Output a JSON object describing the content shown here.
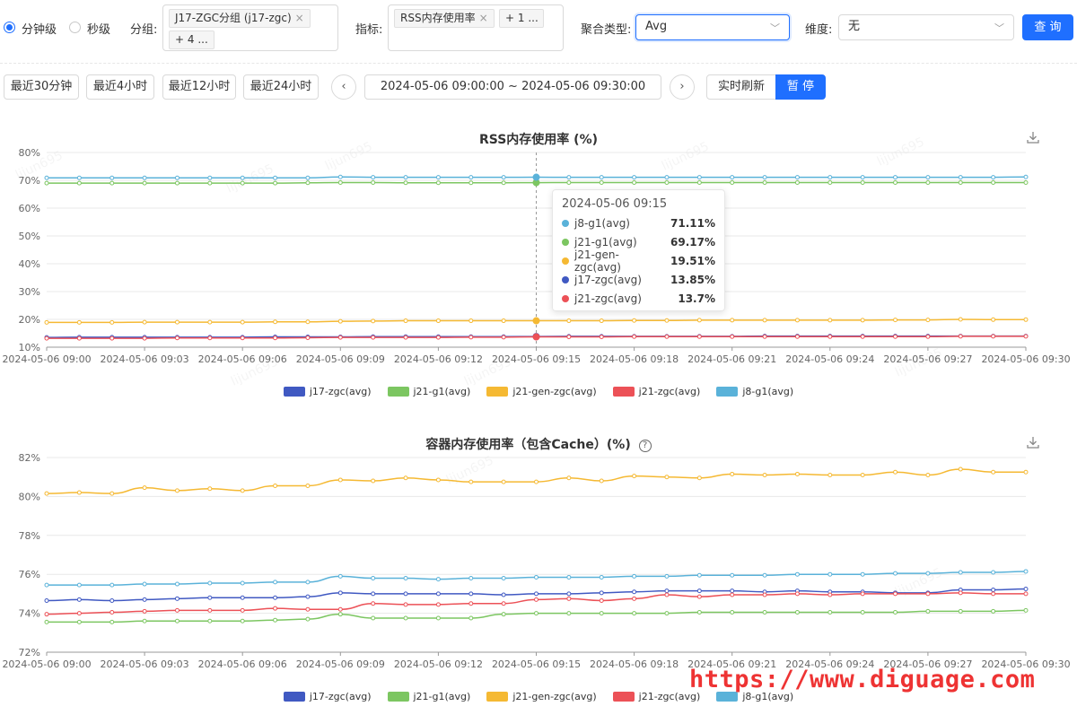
{
  "filters": {
    "radio_minute": "分钟级",
    "radio_second": "秒级",
    "group_label": "分组:",
    "group_tag": "J17-ZGC分组 (j17-zgc)",
    "group_more": "+ 4 ...",
    "metric_label": "指标:",
    "metric_tag": "RSS内存使用率",
    "metric_more": "+ 1 ...",
    "agg_label": "聚合类型:",
    "agg_value": "Avg",
    "dim_label": "维度:",
    "dim_value": "无",
    "query_button": "查 询"
  },
  "timebar": {
    "quick": [
      "最近30分钟",
      "最近4小时",
      "最近12小时",
      "最近24小时"
    ],
    "range": "2024-05-06 09:00:00 ~ 2024-05-06 09:30:00",
    "realtime": "实时刷新",
    "pause": "暂 停"
  },
  "watermark": "lijun695",
  "site_watermark": "https://www.diguage.com",
  "tooltip": {
    "time": "2024-05-06 09:15",
    "rows": [
      {
        "name": "j8-g1(avg)",
        "value": "71.11%",
        "color": "#5ab2d9"
      },
      {
        "name": "j21-g1(avg)",
        "value": "69.17%",
        "color": "#7cc661"
      },
      {
        "name": "j21-gen-zgc(avg)",
        "value": "19.51%",
        "color": "#f5b933"
      },
      {
        "name": "j17-zgc(avg)",
        "value": "13.85%",
        "color": "#4059c2"
      },
      {
        "name": "j21-zgc(avg)",
        "value": "13.7%",
        "color": "#ec5157"
      }
    ]
  },
  "chart_data": [
    {
      "type": "line",
      "title": "RSS内存使用率 (%)",
      "y_tick_labels": [
        "10%",
        "20%",
        "30%",
        "40%",
        "50%",
        "60%",
        "70%",
        "80%"
      ],
      "ylim": [
        10,
        80
      ],
      "x_tick_labels": [
        "2024-05-06 09:00",
        "2024-05-06 09:03",
        "2024-05-06 09:06",
        "2024-05-06 09:09",
        "2024-05-06 09:12",
        "2024-05-06 09:15",
        "2024-05-06 09:18",
        "2024-05-06 09:21",
        "2024-05-06 09:24",
        "2024-05-06 09:27",
        "2024-05-06 09:30"
      ],
      "x_minutes": [
        0,
        1,
        2,
        3,
        4,
        5,
        6,
        7,
        8,
        9,
        10,
        11,
        12,
        13,
        14,
        15,
        16,
        17,
        18,
        19,
        20,
        21,
        22,
        23,
        24,
        25,
        26,
        27,
        28,
        29,
        30
      ],
      "legend_position": "bottom-center",
      "grid": true,
      "series": [
        {
          "name": "j17-zgc(avg)",
          "color": "#4059c2",
          "values": [
            13.5,
            13.6,
            13.6,
            13.6,
            13.6,
            13.6,
            13.6,
            13.7,
            13.7,
            13.7,
            13.8,
            13.8,
            13.8,
            13.8,
            13.8,
            13.85,
            13.9,
            13.9,
            13.9,
            13.9,
            13.9,
            13.9,
            14.0,
            14.0,
            14.0,
            14.0,
            14.0,
            14.0,
            14.0,
            14.0,
            14.0
          ]
        },
        {
          "name": "j21-g1(avg)",
          "color": "#7cc661",
          "values": [
            69.0,
            69.0,
            69.0,
            69.0,
            69.0,
            69.0,
            69.0,
            69.0,
            69.1,
            69.2,
            69.2,
            69.1,
            69.1,
            69.1,
            69.1,
            69.17,
            69.2,
            69.2,
            69.2,
            69.2,
            69.2,
            69.2,
            69.2,
            69.2,
            69.2,
            69.2,
            69.2,
            69.2,
            69.2,
            69.2,
            69.2
          ]
        },
        {
          "name": "j21-gen-zgc(avg)",
          "color": "#f5b933",
          "values": [
            18.9,
            18.9,
            18.9,
            19.0,
            19.0,
            19.0,
            19.0,
            19.1,
            19.1,
            19.3,
            19.4,
            19.5,
            19.5,
            19.5,
            19.5,
            19.51,
            19.5,
            19.5,
            19.6,
            19.6,
            19.7,
            19.7,
            19.7,
            19.7,
            19.7,
            19.7,
            19.8,
            19.8,
            20.0,
            19.9,
            19.9
          ]
        },
        {
          "name": "j21-zgc(avg)",
          "color": "#ec5157",
          "values": [
            13.2,
            13.2,
            13.2,
            13.2,
            13.3,
            13.3,
            13.3,
            13.3,
            13.4,
            13.5,
            13.5,
            13.5,
            13.5,
            13.6,
            13.6,
            13.7,
            13.7,
            13.7,
            13.8,
            13.8,
            13.8,
            13.8,
            13.8,
            13.8,
            13.8,
            13.8,
            13.8,
            13.8,
            13.9,
            13.9,
            13.9
          ]
        },
        {
          "name": "j8-g1(avg)",
          "color": "#5ab2d9",
          "values": [
            70.9,
            70.9,
            70.9,
            70.9,
            70.9,
            70.9,
            70.9,
            70.9,
            70.9,
            71.2,
            71.1,
            71.1,
            71.1,
            71.1,
            71.1,
            71.11,
            71.1,
            71.1,
            71.1,
            71.1,
            71.1,
            71.1,
            71.1,
            71.1,
            71.1,
            71.1,
            71.1,
            71.1,
            71.1,
            71.1,
            71.2
          ]
        }
      ]
    },
    {
      "type": "line",
      "title": "容器内存使用率（包含Cache）(%)",
      "y_tick_labels": [
        "72%",
        "74%",
        "76%",
        "78%",
        "80%",
        "82%"
      ],
      "ylim": [
        72,
        82
      ],
      "x_tick_labels": [
        "2024-05-06 09:00",
        "2024-05-06 09:03",
        "2024-05-06 09:06",
        "2024-05-06 09:09",
        "2024-05-06 09:12",
        "2024-05-06 09:15",
        "2024-05-06 09:18",
        "2024-05-06 09:21",
        "2024-05-06 09:24",
        "2024-05-06 09:27",
        "2024-05-06 09:30"
      ],
      "x_minutes": [
        0,
        1,
        2,
        3,
        4,
        5,
        6,
        7,
        8,
        9,
        10,
        11,
        12,
        13,
        14,
        15,
        16,
        17,
        18,
        19,
        20,
        21,
        22,
        23,
        24,
        25,
        26,
        27,
        28,
        29,
        30
      ],
      "legend_position": "bottom-center",
      "grid": true,
      "series": [
        {
          "name": "j17-zgc(avg)",
          "color": "#4059c2",
          "values": [
            74.65,
            74.7,
            74.65,
            74.7,
            74.75,
            74.8,
            74.8,
            74.8,
            74.85,
            75.05,
            75.0,
            75.0,
            75.0,
            75.0,
            74.95,
            75.0,
            75.0,
            75.05,
            75.1,
            75.15,
            75.15,
            75.15,
            75.1,
            75.15,
            75.1,
            75.1,
            75.05,
            75.05,
            75.2,
            75.2,
            75.25
          ]
        },
        {
          "name": "j21-g1(avg)",
          "color": "#7cc661",
          "values": [
            73.55,
            73.55,
            73.55,
            73.6,
            73.6,
            73.6,
            73.6,
            73.65,
            73.7,
            73.95,
            73.75,
            73.75,
            73.75,
            73.75,
            73.95,
            74.0,
            74.0,
            74.0,
            74.0,
            74.0,
            74.05,
            74.05,
            74.05,
            74.05,
            74.05,
            74.05,
            74.05,
            74.1,
            74.1,
            74.1,
            74.15
          ]
        },
        {
          "name": "j21-gen-zgc(avg)",
          "color": "#f5b933",
          "values": [
            80.15,
            80.2,
            80.15,
            80.45,
            80.3,
            80.4,
            80.3,
            80.55,
            80.55,
            80.85,
            80.8,
            80.95,
            80.85,
            80.75,
            80.75,
            80.75,
            80.95,
            80.8,
            81.05,
            81.0,
            80.95,
            81.15,
            81.1,
            81.15,
            81.1,
            81.1,
            81.25,
            81.1,
            81.4,
            81.25,
            81.25
          ]
        },
        {
          "name": "j21-zgc(avg)",
          "color": "#ec5157",
          "values": [
            73.95,
            74.0,
            74.05,
            74.1,
            74.15,
            74.15,
            74.15,
            74.25,
            74.2,
            74.2,
            74.5,
            74.45,
            74.45,
            74.5,
            74.5,
            74.7,
            74.75,
            74.65,
            74.75,
            74.95,
            74.85,
            74.95,
            74.95,
            75.0,
            74.95,
            75.0,
            75.0,
            75.0,
            75.05,
            75.0,
            75.0
          ]
        },
        {
          "name": "j8-g1(avg)",
          "color": "#5ab2d9",
          "values": [
            75.45,
            75.45,
            75.45,
            75.5,
            75.5,
            75.55,
            75.55,
            75.6,
            75.6,
            75.9,
            75.8,
            75.8,
            75.75,
            75.8,
            75.8,
            75.85,
            75.85,
            75.85,
            75.9,
            75.9,
            75.95,
            75.95,
            75.95,
            76.0,
            76.0,
            76.0,
            76.05,
            76.05,
            76.1,
            76.1,
            76.15
          ]
        }
      ]
    }
  ]
}
